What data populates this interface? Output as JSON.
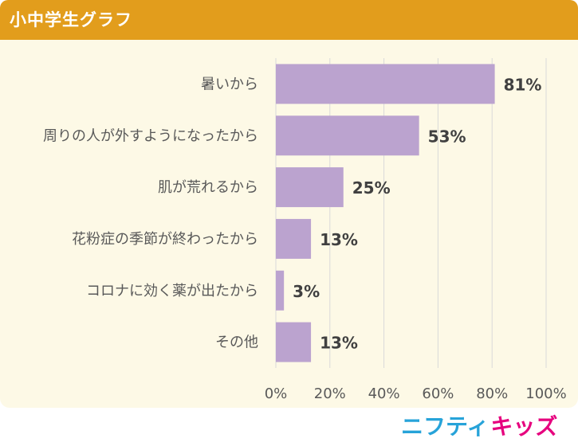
{
  "header": {
    "title": "小中学生グラフ"
  },
  "logo": {
    "nifty": "ニフティ",
    "kids": "キッズ"
  },
  "colors": {
    "header": "#e29d1c",
    "panel": "#fdf9e6",
    "bar": "#bba3cf",
    "grid": "#d9d9d9",
    "text": "#595959",
    "value_text": "#404040"
  },
  "chart_data": {
    "type": "bar",
    "orientation": "horizontal",
    "title": "",
    "categories": [
      "暑いから",
      "周りの人が外すようになったから",
      "肌が荒れるから",
      "花粉症の季節が終わったから",
      "コロナに効く薬が出たから",
      "その他"
    ],
    "values": [
      81,
      53,
      25,
      13,
      3,
      13
    ],
    "value_labels": [
      "81%",
      "53%",
      "25%",
      "13%",
      "3%",
      "13%"
    ],
    "xlim": [
      0,
      100
    ],
    "xticks": [
      0,
      20,
      40,
      60,
      80,
      100
    ],
    "xtick_labels": [
      "0%",
      "20%",
      "40%",
      "60%",
      "80%",
      "100%"
    ],
    "grid": true
  }
}
